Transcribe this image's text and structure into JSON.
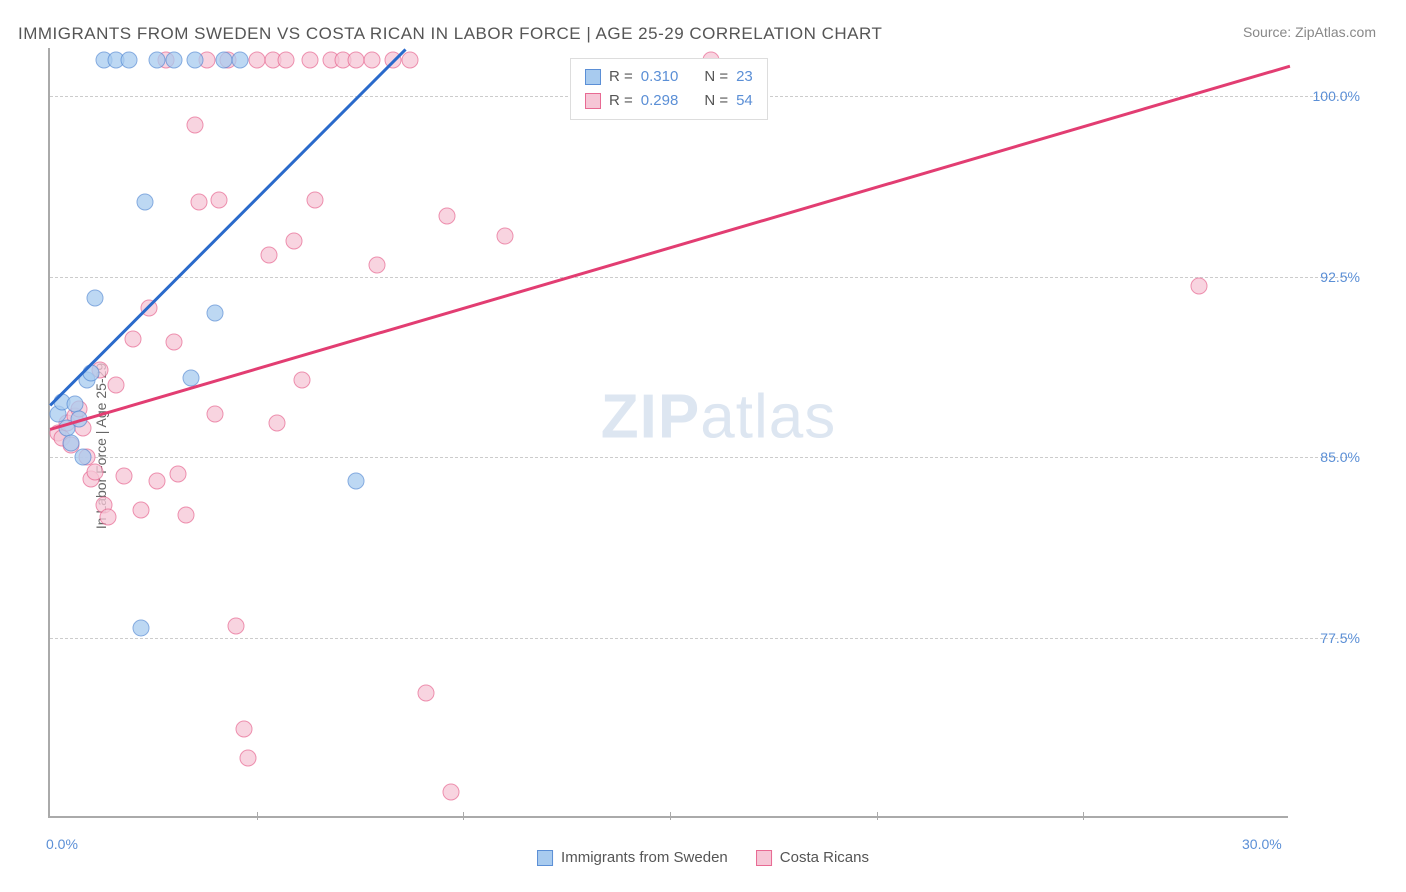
{
  "title": "IMMIGRANTS FROM SWEDEN VS COSTA RICAN IN LABOR FORCE | AGE 25-29 CORRELATION CHART",
  "source": "Source: ZipAtlas.com",
  "ylabel": "In Labor Force | Age 25-29",
  "watermark_a": "ZIP",
  "watermark_b": "atlas",
  "chart": {
    "type": "scatter",
    "xlim": [
      0,
      30
    ],
    "ylim": [
      70,
      102
    ],
    "xticks": [
      0,
      30
    ],
    "xtick_labels": [
      "0.0%",
      "30.0%"
    ],
    "xtick_minor": [
      5,
      10,
      15,
      20,
      25
    ],
    "yticks": [
      77.5,
      85.0,
      92.5,
      100.0
    ],
    "ytick_labels": [
      "77.5%",
      "85.0%",
      "92.5%",
      "100.0%"
    ],
    "grid_color": "#cccccc",
    "axis_color": "#aaaaaa",
    "background_color": "#ffffff",
    "tick_label_color": "#5b8fd6",
    "series": [
      {
        "name": "Immigrants from Sweden",
        "color_fill": "#a8cbef",
        "color_stroke": "#5b8fd6",
        "R": "0.310",
        "N": "23",
        "trend": {
          "x1": 0,
          "y1": 87.2,
          "x2": 8.6,
          "y2": 102,
          "color": "#2a6acb"
        },
        "points": [
          [
            0.2,
            86.8
          ],
          [
            0.3,
            87.3
          ],
          [
            0.4,
            86.2
          ],
          [
            0.5,
            85.6
          ],
          [
            0.6,
            87.2
          ],
          [
            0.7,
            86.6
          ],
          [
            0.8,
            85.0
          ],
          [
            0.9,
            88.2
          ],
          [
            1.0,
            88.5
          ],
          [
            1.1,
            91.6
          ],
          [
            1.3,
            101.5
          ],
          [
            1.6,
            101.5
          ],
          [
            1.9,
            101.5
          ],
          [
            2.2,
            77.9
          ],
          [
            2.3,
            95.6
          ],
          [
            2.6,
            101.5
          ],
          [
            3.0,
            101.5
          ],
          [
            3.4,
            88.3
          ],
          [
            3.5,
            101.5
          ],
          [
            4.0,
            91.0
          ],
          [
            4.2,
            101.5
          ],
          [
            4.6,
            101.5
          ],
          [
            7.4,
            84.0
          ]
        ]
      },
      {
        "name": "Costa Ricans",
        "color_fill": "#f6c6d6",
        "color_stroke": "#e86a93",
        "R": "0.298",
        "N": "54",
        "trend": {
          "x1": 0,
          "y1": 86.2,
          "x2": 30,
          "y2": 101.3,
          "color": "#e23d72"
        },
        "points": [
          [
            0.2,
            86.0
          ],
          [
            0.3,
            85.8
          ],
          [
            0.4,
            86.4
          ],
          [
            0.5,
            85.5
          ],
          [
            0.6,
            86.7
          ],
          [
            0.7,
            87.0
          ],
          [
            0.8,
            86.2
          ],
          [
            0.9,
            85.0
          ],
          [
            1.0,
            84.1
          ],
          [
            1.1,
            84.4
          ],
          [
            1.2,
            88.6
          ],
          [
            1.3,
            83.0
          ],
          [
            1.4,
            82.5
          ],
          [
            1.6,
            88.0
          ],
          [
            1.8,
            84.2
          ],
          [
            2.0,
            89.9
          ],
          [
            2.2,
            82.8
          ],
          [
            2.4,
            91.2
          ],
          [
            2.6,
            84.0
          ],
          [
            2.8,
            101.5
          ],
          [
            3.0,
            89.8
          ],
          [
            3.1,
            84.3
          ],
          [
            3.3,
            82.6
          ],
          [
            3.5,
            98.8
          ],
          [
            3.6,
            95.6
          ],
          [
            3.8,
            101.5
          ],
          [
            4.0,
            86.8
          ],
          [
            4.1,
            95.7
          ],
          [
            4.3,
            101.5
          ],
          [
            4.5,
            78.0
          ],
          [
            4.7,
            73.7
          ],
          [
            4.8,
            72.5
          ],
          [
            5.0,
            101.5
          ],
          [
            5.3,
            93.4
          ],
          [
            5.4,
            101.5
          ],
          [
            5.5,
            86.4
          ],
          [
            5.7,
            101.5
          ],
          [
            5.9,
            94.0
          ],
          [
            6.1,
            88.2
          ],
          [
            6.3,
            101.5
          ],
          [
            6.4,
            95.7
          ],
          [
            6.8,
            101.5
          ],
          [
            7.1,
            101.5
          ],
          [
            7.4,
            101.5
          ],
          [
            7.8,
            101.5
          ],
          [
            7.9,
            93.0
          ],
          [
            8.3,
            101.5
          ],
          [
            8.7,
            101.5
          ],
          [
            9.1,
            75.2
          ],
          [
            9.6,
            95.0
          ],
          [
            9.7,
            71.1
          ],
          [
            11.0,
            94.2
          ],
          [
            16.0,
            101.5
          ],
          [
            27.8,
            92.1
          ]
        ]
      }
    ]
  },
  "legend_top": {
    "rows": [
      {
        "swatch_fill": "#a8cbef",
        "swatch_stroke": "#5b8fd6",
        "R_label": "R =",
        "R_val": "0.310",
        "N_label": "N =",
        "N_val": "23"
      },
      {
        "swatch_fill": "#f6c6d6",
        "swatch_stroke": "#e86a93",
        "R_label": "R =",
        "R_val": "0.298",
        "N_label": "N =",
        "N_val": "54"
      }
    ]
  },
  "legend_bottom": [
    {
      "swatch_fill": "#a8cbef",
      "swatch_stroke": "#5b8fd6",
      "label": "Immigrants from Sweden"
    },
    {
      "swatch_fill": "#f6c6d6",
      "swatch_stroke": "#e86a93",
      "label": "Costa Ricans"
    }
  ]
}
